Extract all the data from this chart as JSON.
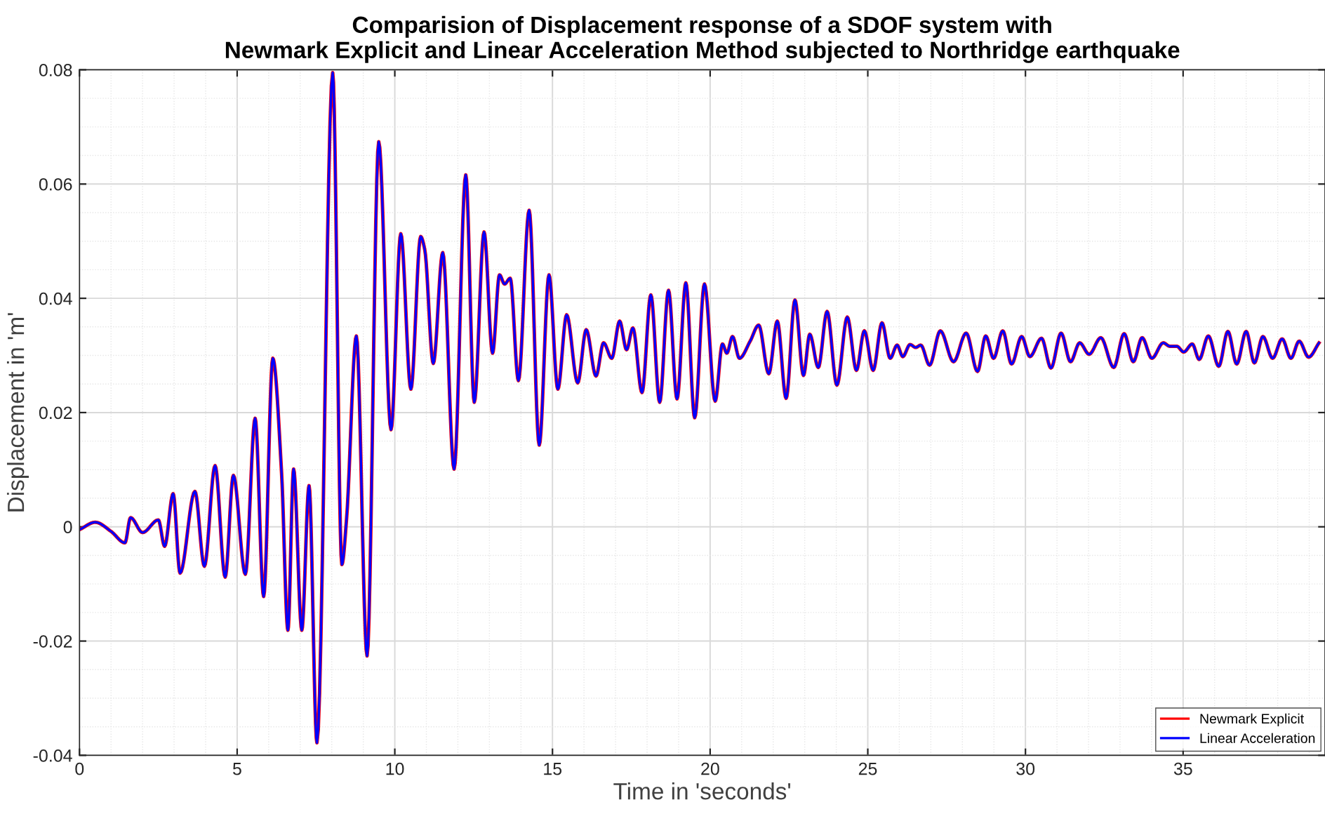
{
  "chart_data": {
    "type": "line",
    "title": "Comparision of Displacement response of a SDOF system with\nNewmark Explicit and Linear Acceleration Method subjected to Northridge earthquake",
    "xlabel": "Time in 'seconds'",
    "ylabel": "Displacement in 'm'",
    "x": [
      0,
      0.5,
      1.0,
      1.44,
      1.62,
      2.0,
      2.5,
      2.7,
      2.97,
      3.19,
      3.66,
      3.96,
      4.3,
      4.62,
      4.88,
      5.26,
      5.57,
      5.84,
      6.13,
      6.41,
      6.61,
      6.79,
      7.05,
      7.28,
      7.53,
      8.03,
      8.32,
      8.47,
      8.78,
      9.12,
      9.49,
      9.88,
      10.19,
      10.51,
      10.82,
      10.95,
      11.22,
      11.52,
      11.88,
      12.25,
      12.52,
      12.83,
      13.1,
      13.32,
      13.48,
      13.66,
      13.92,
      14.26,
      14.58,
      14.89,
      15.17,
      15.45,
      15.8,
      16.07,
      16.38,
      16.62,
      16.88,
      17.13,
      17.35,
      17.55,
      17.84,
      18.12,
      18.4,
      18.68,
      18.95,
      19.23,
      19.51,
      19.82,
      20.16,
      20.39,
      20.53,
      20.71,
      20.93,
      21.27,
      21.54,
      21.86,
      22.13,
      22.41,
      22.69,
      22.96,
      23.16,
      23.43,
      23.71,
      24.02,
      24.35,
      24.64,
      24.89,
      25.17,
      25.45,
      25.71,
      25.93,
      26.11,
      26.34,
      26.52,
      26.68,
      26.96,
      27.3,
      27.72,
      28.12,
      28.48,
      28.74,
      28.99,
      29.28,
      29.56,
      29.88,
      30.14,
      30.51,
      30.81,
      31.13,
      31.43,
      31.72,
      32.02,
      32.39,
      32.8,
      33.13,
      33.42,
      33.7,
      34.01,
      34.37,
      34.58,
      34.8,
      35.02,
      35.29,
      35.51,
      35.8,
      36.13,
      36.42,
      36.7,
      37.0,
      37.26,
      37.53,
      37.84,
      38.14,
      38.42,
      38.68,
      38.98,
      39.31
    ],
    "series": [
      {
        "name": "Newmark Explicit",
        "color": "#ff0000",
        "values": [
          -0.0005,
          0.0008,
          -0.0008,
          -0.0028,
          0.0016,
          -0.001,
          0.0012,
          -0.0034,
          0.0058,
          -0.0081,
          0.0062,
          -0.0069,
          0.0107,
          -0.0088,
          0.009,
          -0.0083,
          0.019,
          -0.0122,
          0.0295,
          0.0093,
          -0.0181,
          0.0101,
          -0.0181,
          0.0072,
          -0.0378,
          0.0795,
          -0.0066,
          0.0014,
          0.0334,
          -0.0226,
          0.0674,
          0.017,
          0.0513,
          0.0241,
          0.0508,
          0.0485,
          0.0286,
          0.048,
          0.0101,
          0.0616,
          0.0218,
          0.0516,
          0.0304,
          0.0441,
          0.0425,
          0.0435,
          0.0256,
          0.0554,
          0.0143,
          0.0441,
          0.0241,
          0.0371,
          0.0252,
          0.0345,
          0.0264,
          0.0322,
          0.0295,
          0.036,
          0.031,
          0.0348,
          0.0235,
          0.0406,
          0.0218,
          0.0414,
          0.0224,
          0.0427,
          0.0191,
          0.0425,
          0.022,
          0.032,
          0.0304,
          0.0333,
          0.0295,
          0.0325,
          0.0353,
          0.0268,
          0.036,
          0.0225,
          0.0397,
          0.0265,
          0.0337,
          0.0279,
          0.0377,
          0.0248,
          0.0367,
          0.0274,
          0.0343,
          0.0274,
          0.0357,
          0.0295,
          0.0318,
          0.0298,
          0.0319,
          0.0314,
          0.0318,
          0.0283,
          0.0343,
          0.0289,
          0.0339,
          0.0272,
          0.0334,
          0.0295,
          0.0343,
          0.0285,
          0.0333,
          0.0298,
          0.033,
          0.0278,
          0.0339,
          0.0289,
          0.0322,
          0.0302,
          0.0331,
          0.0279,
          0.0338,
          0.0289,
          0.0331,
          0.0295,
          0.0322,
          0.0316,
          0.0316,
          0.0306,
          0.032,
          0.0293,
          0.0334,
          0.0281,
          0.0342,
          0.0285,
          0.0342,
          0.0287,
          0.0333,
          0.0295,
          0.0329,
          0.0295,
          0.0325,
          0.0297,
          0.0322
        ]
      },
      {
        "name": "Linear Acceleration",
        "color": "#0000ff",
        "values": [
          -0.0005,
          0.0008,
          -0.0008,
          -0.0028,
          0.0016,
          -0.001,
          0.0012,
          -0.0034,
          0.0058,
          -0.0081,
          0.0062,
          -0.0069,
          0.0107,
          -0.0088,
          0.009,
          -0.0083,
          0.019,
          -0.0122,
          0.0295,
          0.0093,
          -0.0181,
          0.0101,
          -0.0181,
          0.0072,
          -0.0378,
          0.0795,
          -0.0066,
          0.0014,
          0.0334,
          -0.0226,
          0.0674,
          0.017,
          0.0513,
          0.0241,
          0.0508,
          0.0485,
          0.0286,
          0.048,
          0.0101,
          0.0616,
          0.0218,
          0.0516,
          0.0304,
          0.0441,
          0.0425,
          0.0435,
          0.0256,
          0.0554,
          0.0143,
          0.0441,
          0.0241,
          0.0371,
          0.0252,
          0.0345,
          0.0264,
          0.0322,
          0.0295,
          0.036,
          0.031,
          0.0348,
          0.0235,
          0.0406,
          0.0218,
          0.0414,
          0.0224,
          0.0427,
          0.0191,
          0.0425,
          0.022,
          0.032,
          0.0304,
          0.0333,
          0.0295,
          0.0325,
          0.0353,
          0.0268,
          0.036,
          0.0225,
          0.0397,
          0.0265,
          0.0337,
          0.0279,
          0.0377,
          0.0248,
          0.0367,
          0.0274,
          0.0343,
          0.0274,
          0.0357,
          0.0295,
          0.0318,
          0.0298,
          0.0319,
          0.0314,
          0.0318,
          0.0283,
          0.0343,
          0.0289,
          0.0339,
          0.0272,
          0.0334,
          0.0295,
          0.0343,
          0.0285,
          0.0333,
          0.0298,
          0.033,
          0.0278,
          0.0339,
          0.0289,
          0.0322,
          0.0302,
          0.0331,
          0.0279,
          0.0338,
          0.0289,
          0.0331,
          0.0295,
          0.0322,
          0.0316,
          0.0316,
          0.0306,
          0.032,
          0.0293,
          0.0334,
          0.0281,
          0.0342,
          0.0285,
          0.0342,
          0.0287,
          0.0333,
          0.0295,
          0.0329,
          0.0295,
          0.0325,
          0.0297,
          0.0322
        ]
      }
    ],
    "xlim": [
      0,
      39.5
    ],
    "xticks": [
      0,
      5,
      10,
      15,
      20,
      25,
      30,
      35
    ],
    "ylim": [
      -0.04,
      0.08
    ],
    "yticks": [
      -0.04,
      -0.02,
      0,
      0.02,
      0.04,
      0.06,
      0.08
    ],
    "grid": true,
    "legend": "bottom right",
    "marker": "none",
    "line_style": "solid"
  }
}
